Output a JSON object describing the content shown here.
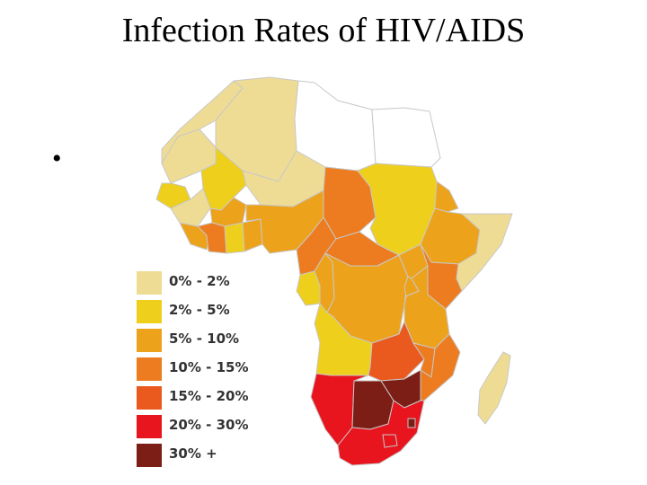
{
  "slide": {
    "title": "Infection Rates of HIV/AIDS",
    "bullet": "•"
  },
  "legend": [
    {
      "label": "0% - 2%",
      "color": "#efdc94"
    },
    {
      "label": "2% - 5%",
      "color": "#edcf1c"
    },
    {
      "label": "5% - 10%",
      "color": "#eda21c"
    },
    {
      "label": "10% - 15%",
      "color": "#ec7c1f"
    },
    {
      "label": "15% - 20%",
      "color": "#ea5a1f"
    },
    {
      "label": "20% - 30%",
      "color": "#e8141e"
    },
    {
      "label": "30% +",
      "color": "#7c1e15"
    }
  ],
  "map": {
    "subject": "Africa",
    "regions": [
      {
        "name": "morocco-western-sahara",
        "category": "0% - 2%"
      },
      {
        "name": "algeria",
        "category": "0% - 2%"
      },
      {
        "name": "tunisia-libya",
        "category": "none"
      },
      {
        "name": "egypt",
        "category": "none"
      },
      {
        "name": "mauritania",
        "category": "0% - 2%"
      },
      {
        "name": "mali",
        "category": "2% - 5%"
      },
      {
        "name": "niger",
        "category": "0% - 2%"
      },
      {
        "name": "chad",
        "category": "10% - 15%"
      },
      {
        "name": "sudan",
        "category": "2% - 5%"
      },
      {
        "name": "ethiopia",
        "category": "5% - 10%"
      },
      {
        "name": "eritrea",
        "category": "5% - 10%"
      },
      {
        "name": "somalia",
        "category": "0% - 2%"
      },
      {
        "name": "senegal-gambia",
        "category": "2% - 5%"
      },
      {
        "name": "guinea",
        "category": "0% - 2%"
      },
      {
        "name": "sierra-leone-liberia",
        "category": "5% - 10%"
      },
      {
        "name": "burkina-faso",
        "category": "5% - 10%"
      },
      {
        "name": "cote-d-ivoire",
        "category": "10% - 15%"
      },
      {
        "name": "ghana",
        "category": "2% - 5%"
      },
      {
        "name": "togo-benin",
        "category": "5% - 10%"
      },
      {
        "name": "nigeria",
        "category": "5% - 10%"
      },
      {
        "name": "cameroon",
        "category": "10% - 15%"
      },
      {
        "name": "central-african-republic",
        "category": "10% - 15%"
      },
      {
        "name": "gabon-equatorial-guinea",
        "category": "2% - 5%"
      },
      {
        "name": "congo",
        "category": "5% - 10%"
      },
      {
        "name": "dr-congo",
        "category": "5% - 10%"
      },
      {
        "name": "uganda",
        "category": "5% - 10%"
      },
      {
        "name": "kenya",
        "category": "10% - 15%"
      },
      {
        "name": "rwanda-burundi",
        "category": "5% - 10%"
      },
      {
        "name": "tanzania",
        "category": "5% - 10%"
      },
      {
        "name": "angola",
        "category": "2% - 5%"
      },
      {
        "name": "zambia",
        "category": "15% - 20%"
      },
      {
        "name": "malawi",
        "category": "10% - 15%"
      },
      {
        "name": "mozambique",
        "category": "10% - 15%"
      },
      {
        "name": "namibia",
        "category": "20% - 30%"
      },
      {
        "name": "botswana",
        "category": "30% +"
      },
      {
        "name": "zimbabwe",
        "category": "30% +"
      },
      {
        "name": "south-africa",
        "category": "20% - 30%"
      },
      {
        "name": "lesotho",
        "category": "20% - 30%"
      },
      {
        "name": "swaziland",
        "category": "30% +"
      },
      {
        "name": "madagascar",
        "category": "0% - 2%"
      }
    ]
  }
}
